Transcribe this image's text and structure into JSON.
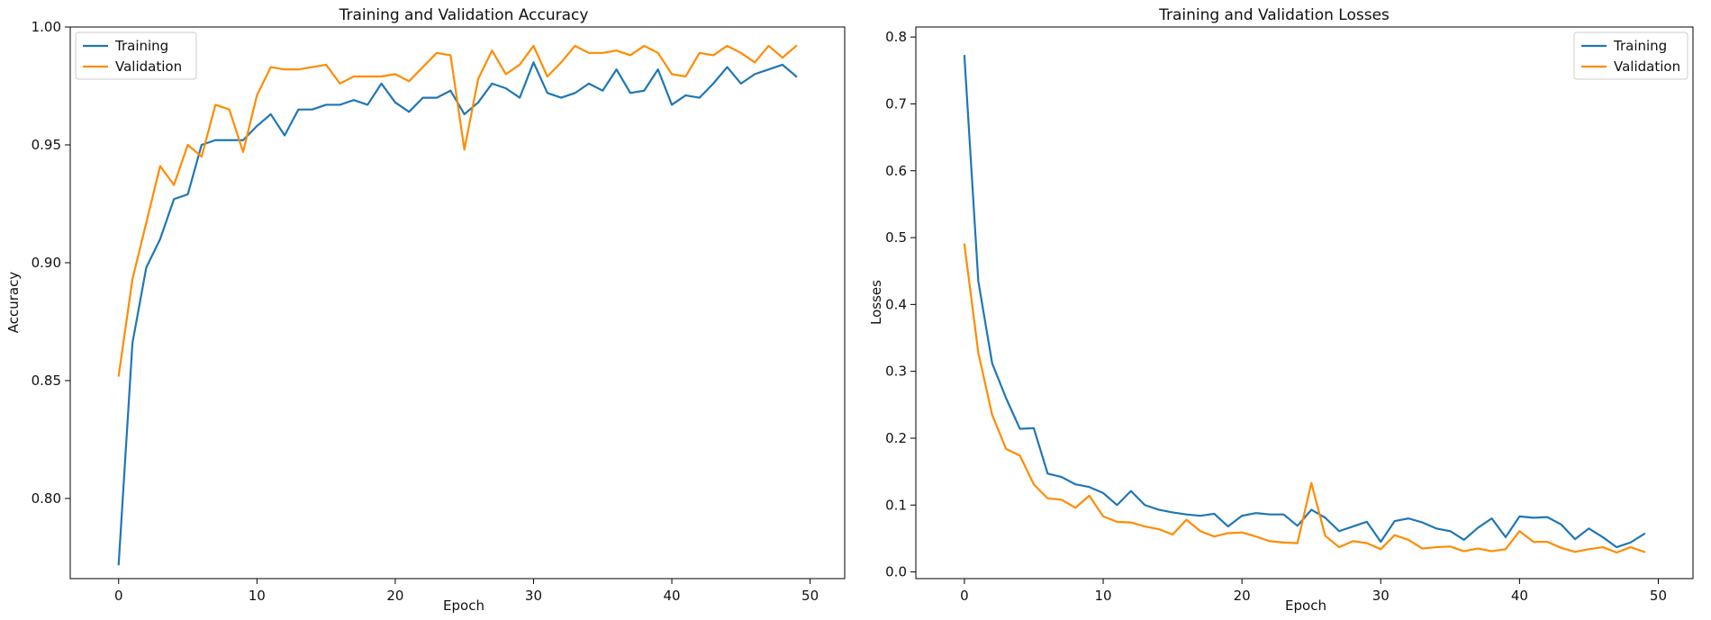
{
  "chart_data": [
    {
      "type": "line",
      "title": "Training and Validation Accuracy",
      "xlabel": "Epoch",
      "ylabel": "Accuracy",
      "xlim": [
        -3.5,
        52.5
      ],
      "ylim": [
        0.766,
        1.0
      ],
      "xticks": [
        0,
        10,
        20,
        30,
        40,
        50
      ],
      "yticks": [
        0.8,
        0.85,
        0.9,
        0.95,
        1.0
      ],
      "ytick_labels": [
        "0.80",
        "0.85",
        "0.90",
        "0.95",
        "1.00"
      ],
      "legend_position": "upper-left",
      "series": [
        {
          "name": "Training",
          "color": "#1f77b4",
          "x": [
            0,
            1,
            2,
            3,
            4,
            5,
            6,
            7,
            8,
            9,
            10,
            11,
            12,
            13,
            14,
            15,
            16,
            17,
            18,
            19,
            20,
            21,
            22,
            23,
            24,
            25,
            26,
            27,
            28,
            29,
            30,
            31,
            32,
            33,
            34,
            35,
            36,
            37,
            38,
            39,
            40,
            41,
            42,
            43,
            44,
            45,
            46,
            47,
            48,
            49
          ],
          "values": [
            0.772,
            0.866,
            0.898,
            0.91,
            0.927,
            0.929,
            0.95,
            0.952,
            0.952,
            0.952,
            0.958,
            0.963,
            0.954,
            0.965,
            0.965,
            0.967,
            0.967,
            0.969,
            0.967,
            0.976,
            0.968,
            0.964,
            0.97,
            0.97,
            0.973,
            0.963,
            0.968,
            0.976,
            0.974,
            0.97,
            0.985,
            0.972,
            0.97,
            0.972,
            0.976,
            0.973,
            0.982,
            0.972,
            0.973,
            0.982,
            0.967,
            0.971,
            0.97,
            0.976,
            0.983,
            0.976,
            0.98,
            0.982,
            0.984,
            0.979
          ]
        },
        {
          "name": "Validation",
          "color": "#ff8c00",
          "x": [
            0,
            1,
            2,
            3,
            4,
            5,
            6,
            7,
            8,
            9,
            10,
            11,
            12,
            13,
            14,
            15,
            16,
            17,
            18,
            19,
            20,
            21,
            22,
            23,
            24,
            25,
            26,
            27,
            28,
            29,
            30,
            31,
            32,
            33,
            34,
            35,
            36,
            37,
            38,
            39,
            40,
            41,
            42,
            43,
            44,
            45,
            46,
            47,
            48,
            49
          ],
          "values": [
            0.852,
            0.893,
            0.917,
            0.941,
            0.933,
            0.95,
            0.945,
            0.967,
            0.965,
            0.947,
            0.971,
            0.983,
            0.982,
            0.982,
            0.983,
            0.984,
            0.976,
            0.979,
            0.979,
            0.979,
            0.98,
            0.977,
            0.983,
            0.989,
            0.988,
            0.948,
            0.978,
            0.99,
            0.98,
            0.984,
            0.992,
            0.979,
            0.985,
            0.992,
            0.989,
            0.989,
            0.99,
            0.988,
            0.992,
            0.989,
            0.98,
            0.979,
            0.989,
            0.988,
            0.992,
            0.989,
            0.985,
            0.992,
            0.987,
            0.992
          ]
        }
      ]
    },
    {
      "type": "line",
      "title": "Training and Validation Losses",
      "xlabel": "Epoch",
      "ylabel": "Losses",
      "xlim": [
        -3.5,
        52.5
      ],
      "ylim": [
        -0.01,
        0.815
      ],
      "xticks": [
        0,
        10,
        20,
        30,
        40,
        50
      ],
      "yticks": [
        0.0,
        0.1,
        0.2,
        0.3,
        0.4,
        0.5,
        0.6,
        0.7,
        0.8
      ],
      "ytick_labels": [
        "0.0",
        "0.1",
        "0.2",
        "0.3",
        "0.4",
        "0.5",
        "0.6",
        "0.7",
        "0.8"
      ],
      "legend_position": "upper-right",
      "series": [
        {
          "name": "Training",
          "color": "#1f77b4",
          "x": [
            0,
            1,
            2,
            3,
            4,
            5,
            6,
            7,
            8,
            9,
            10,
            11,
            12,
            13,
            14,
            15,
            16,
            17,
            18,
            19,
            20,
            21,
            22,
            23,
            24,
            25,
            26,
            27,
            28,
            29,
            30,
            31,
            32,
            33,
            34,
            35,
            36,
            37,
            38,
            39,
            40,
            41,
            42,
            43,
            44,
            45,
            46,
            47,
            48,
            49
          ],
          "values": [
            0.772,
            0.435,
            0.312,
            0.26,
            0.214,
            0.215,
            0.147,
            0.142,
            0.131,
            0.127,
            0.118,
            0.1,
            0.121,
            0.1,
            0.093,
            0.089,
            0.086,
            0.084,
            0.087,
            0.068,
            0.084,
            0.088,
            0.086,
            0.086,
            0.069,
            0.093,
            0.081,
            0.061,
            0.068,
            0.075,
            0.045,
            0.076,
            0.08,
            0.074,
            0.065,
            0.061,
            0.048,
            0.066,
            0.08,
            0.052,
            0.083,
            0.081,
            0.082,
            0.071,
            0.049,
            0.065,
            0.052,
            0.037,
            0.044,
            0.057
          ]
        },
        {
          "name": "Validation",
          "color": "#ff8c00",
          "x": [
            0,
            1,
            2,
            3,
            4,
            5,
            6,
            7,
            8,
            9,
            10,
            11,
            12,
            13,
            14,
            15,
            16,
            17,
            18,
            19,
            20,
            21,
            22,
            23,
            24,
            25,
            26,
            27,
            28,
            29,
            30,
            31,
            32,
            33,
            34,
            35,
            36,
            37,
            38,
            39,
            40,
            41,
            42,
            43,
            44,
            45,
            46,
            47,
            48,
            49
          ],
          "values": [
            0.49,
            0.328,
            0.235,
            0.184,
            0.174,
            0.131,
            0.11,
            0.108,
            0.096,
            0.114,
            0.083,
            0.075,
            0.074,
            0.068,
            0.064,
            0.056,
            0.078,
            0.061,
            0.053,
            0.058,
            0.059,
            0.053,
            0.046,
            0.044,
            0.043,
            0.133,
            0.054,
            0.037,
            0.046,
            0.043,
            0.034,
            0.055,
            0.048,
            0.035,
            0.037,
            0.038,
            0.031,
            0.035,
            0.031,
            0.034,
            0.061,
            0.045,
            0.045,
            0.036,
            0.03,
            0.034,
            0.037,
            0.029,
            0.037,
            0.03
          ]
        }
      ]
    }
  ]
}
